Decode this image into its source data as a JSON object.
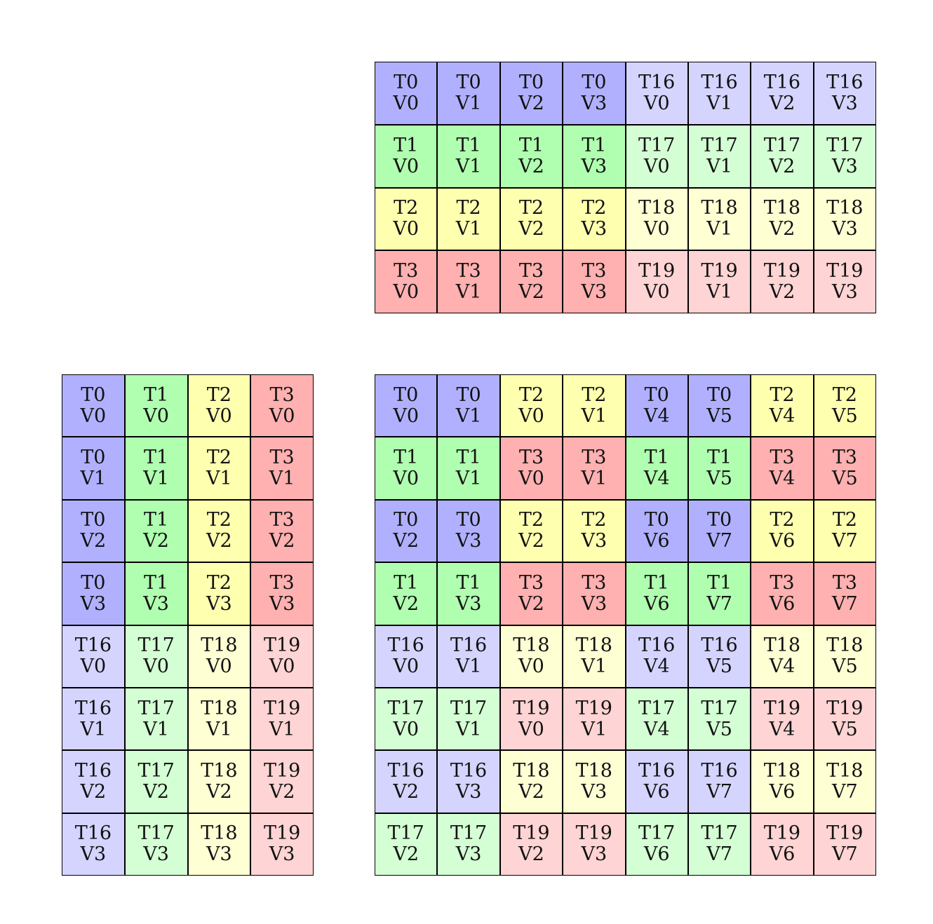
{
  "thread_colors": {
    "T0": "#b0b0ff",
    "T1": "#b0ffb0",
    "T2": "#ffffb0",
    "T3": "#ffb0b0",
    "T16": "#d4d4ff",
    "T17": "#d4ffd4",
    "T18": "#ffffd4",
    "T19": "#ffd4d4"
  },
  "grids": [
    {
      "id": "top",
      "rows": [
        [
          [
            "T0",
            "V0"
          ],
          [
            "T0",
            "V1"
          ],
          [
            "T0",
            "V2"
          ],
          [
            "T0",
            "V3"
          ],
          [
            "T16",
            "V0"
          ],
          [
            "T16",
            "V1"
          ],
          [
            "T16",
            "V2"
          ],
          [
            "T16",
            "V3"
          ]
        ],
        [
          [
            "T1",
            "V0"
          ],
          [
            "T1",
            "V1"
          ],
          [
            "T1",
            "V2"
          ],
          [
            "T1",
            "V3"
          ],
          [
            "T17",
            "V0"
          ],
          [
            "T17",
            "V1"
          ],
          [
            "T17",
            "V2"
          ],
          [
            "T17",
            "V3"
          ]
        ],
        [
          [
            "T2",
            "V0"
          ],
          [
            "T2",
            "V1"
          ],
          [
            "T2",
            "V2"
          ],
          [
            "T2",
            "V3"
          ],
          [
            "T18",
            "V0"
          ],
          [
            "T18",
            "V1"
          ],
          [
            "T18",
            "V2"
          ],
          [
            "T18",
            "V3"
          ]
        ],
        [
          [
            "T3",
            "V0"
          ],
          [
            "T3",
            "V1"
          ],
          [
            "T3",
            "V2"
          ],
          [
            "T3",
            "V3"
          ],
          [
            "T19",
            "V0"
          ],
          [
            "T19",
            "V1"
          ],
          [
            "T19",
            "V2"
          ],
          [
            "T19",
            "V3"
          ]
        ]
      ]
    },
    {
      "id": "left",
      "rows": [
        [
          [
            "T0",
            "V0"
          ],
          [
            "T1",
            "V0"
          ],
          [
            "T2",
            "V0"
          ],
          [
            "T3",
            "V0"
          ]
        ],
        [
          [
            "T0",
            "V1"
          ],
          [
            "T1",
            "V1"
          ],
          [
            "T2",
            "V1"
          ],
          [
            "T3",
            "V1"
          ]
        ],
        [
          [
            "T0",
            "V2"
          ],
          [
            "T1",
            "V2"
          ],
          [
            "T2",
            "V2"
          ],
          [
            "T3",
            "V2"
          ]
        ],
        [
          [
            "T0",
            "V3"
          ],
          [
            "T1",
            "V3"
          ],
          [
            "T2",
            "V3"
          ],
          [
            "T3",
            "V3"
          ]
        ],
        [
          [
            "T16",
            "V0"
          ],
          [
            "T17",
            "V0"
          ],
          [
            "T18",
            "V0"
          ],
          [
            "T19",
            "V0"
          ]
        ],
        [
          [
            "T16",
            "V1"
          ],
          [
            "T17",
            "V1"
          ],
          [
            "T18",
            "V1"
          ],
          [
            "T19",
            "V1"
          ]
        ],
        [
          [
            "T16",
            "V2"
          ],
          [
            "T17",
            "V2"
          ],
          [
            "T18",
            "V2"
          ],
          [
            "T19",
            "V2"
          ]
        ],
        [
          [
            "T16",
            "V3"
          ],
          [
            "T17",
            "V3"
          ],
          [
            "T18",
            "V3"
          ],
          [
            "T19",
            "V3"
          ]
        ]
      ]
    },
    {
      "id": "right",
      "rows": [
        [
          [
            "T0",
            "V0"
          ],
          [
            "T0",
            "V1"
          ],
          [
            "T2",
            "V0"
          ],
          [
            "T2",
            "V1"
          ],
          [
            "T0",
            "V4"
          ],
          [
            "T0",
            "V5"
          ],
          [
            "T2",
            "V4"
          ],
          [
            "T2",
            "V5"
          ]
        ],
        [
          [
            "T1",
            "V0"
          ],
          [
            "T1",
            "V1"
          ],
          [
            "T3",
            "V0"
          ],
          [
            "T3",
            "V1"
          ],
          [
            "T1",
            "V4"
          ],
          [
            "T1",
            "V5"
          ],
          [
            "T3",
            "V4"
          ],
          [
            "T3",
            "V5"
          ]
        ],
        [
          [
            "T0",
            "V2"
          ],
          [
            "T0",
            "V3"
          ],
          [
            "T2",
            "V2"
          ],
          [
            "T2",
            "V3"
          ],
          [
            "T0",
            "V6"
          ],
          [
            "T0",
            "V7"
          ],
          [
            "T2",
            "V6"
          ],
          [
            "T2",
            "V7"
          ]
        ],
        [
          [
            "T1",
            "V2"
          ],
          [
            "T1",
            "V3"
          ],
          [
            "T3",
            "V2"
          ],
          [
            "T3",
            "V3"
          ],
          [
            "T1",
            "V6"
          ],
          [
            "T1",
            "V7"
          ],
          [
            "T3",
            "V6"
          ],
          [
            "T3",
            "V7"
          ]
        ],
        [
          [
            "T16",
            "V0"
          ],
          [
            "T16",
            "V1"
          ],
          [
            "T18",
            "V0"
          ],
          [
            "T18",
            "V1"
          ],
          [
            "T16",
            "V4"
          ],
          [
            "T16",
            "V5"
          ],
          [
            "T18",
            "V4"
          ],
          [
            "T18",
            "V5"
          ]
        ],
        [
          [
            "T17",
            "V0"
          ],
          [
            "T17",
            "V1"
          ],
          [
            "T19",
            "V0"
          ],
          [
            "T19",
            "V1"
          ],
          [
            "T17",
            "V4"
          ],
          [
            "T17",
            "V5"
          ],
          [
            "T19",
            "V4"
          ],
          [
            "T19",
            "V5"
          ]
        ],
        [
          [
            "T16",
            "V2"
          ],
          [
            "T16",
            "V3"
          ],
          [
            "T18",
            "V2"
          ],
          [
            "T18",
            "V3"
          ],
          [
            "T16",
            "V6"
          ],
          [
            "T16",
            "V7"
          ],
          [
            "T18",
            "V6"
          ],
          [
            "T18",
            "V7"
          ]
        ],
        [
          [
            "T17",
            "V2"
          ],
          [
            "T17",
            "V3"
          ],
          [
            "T19",
            "V2"
          ],
          [
            "T19",
            "V3"
          ],
          [
            "T17",
            "V6"
          ],
          [
            "T17",
            "V7"
          ],
          [
            "T19",
            "V6"
          ],
          [
            "T19",
            "V7"
          ]
        ]
      ]
    }
  ]
}
